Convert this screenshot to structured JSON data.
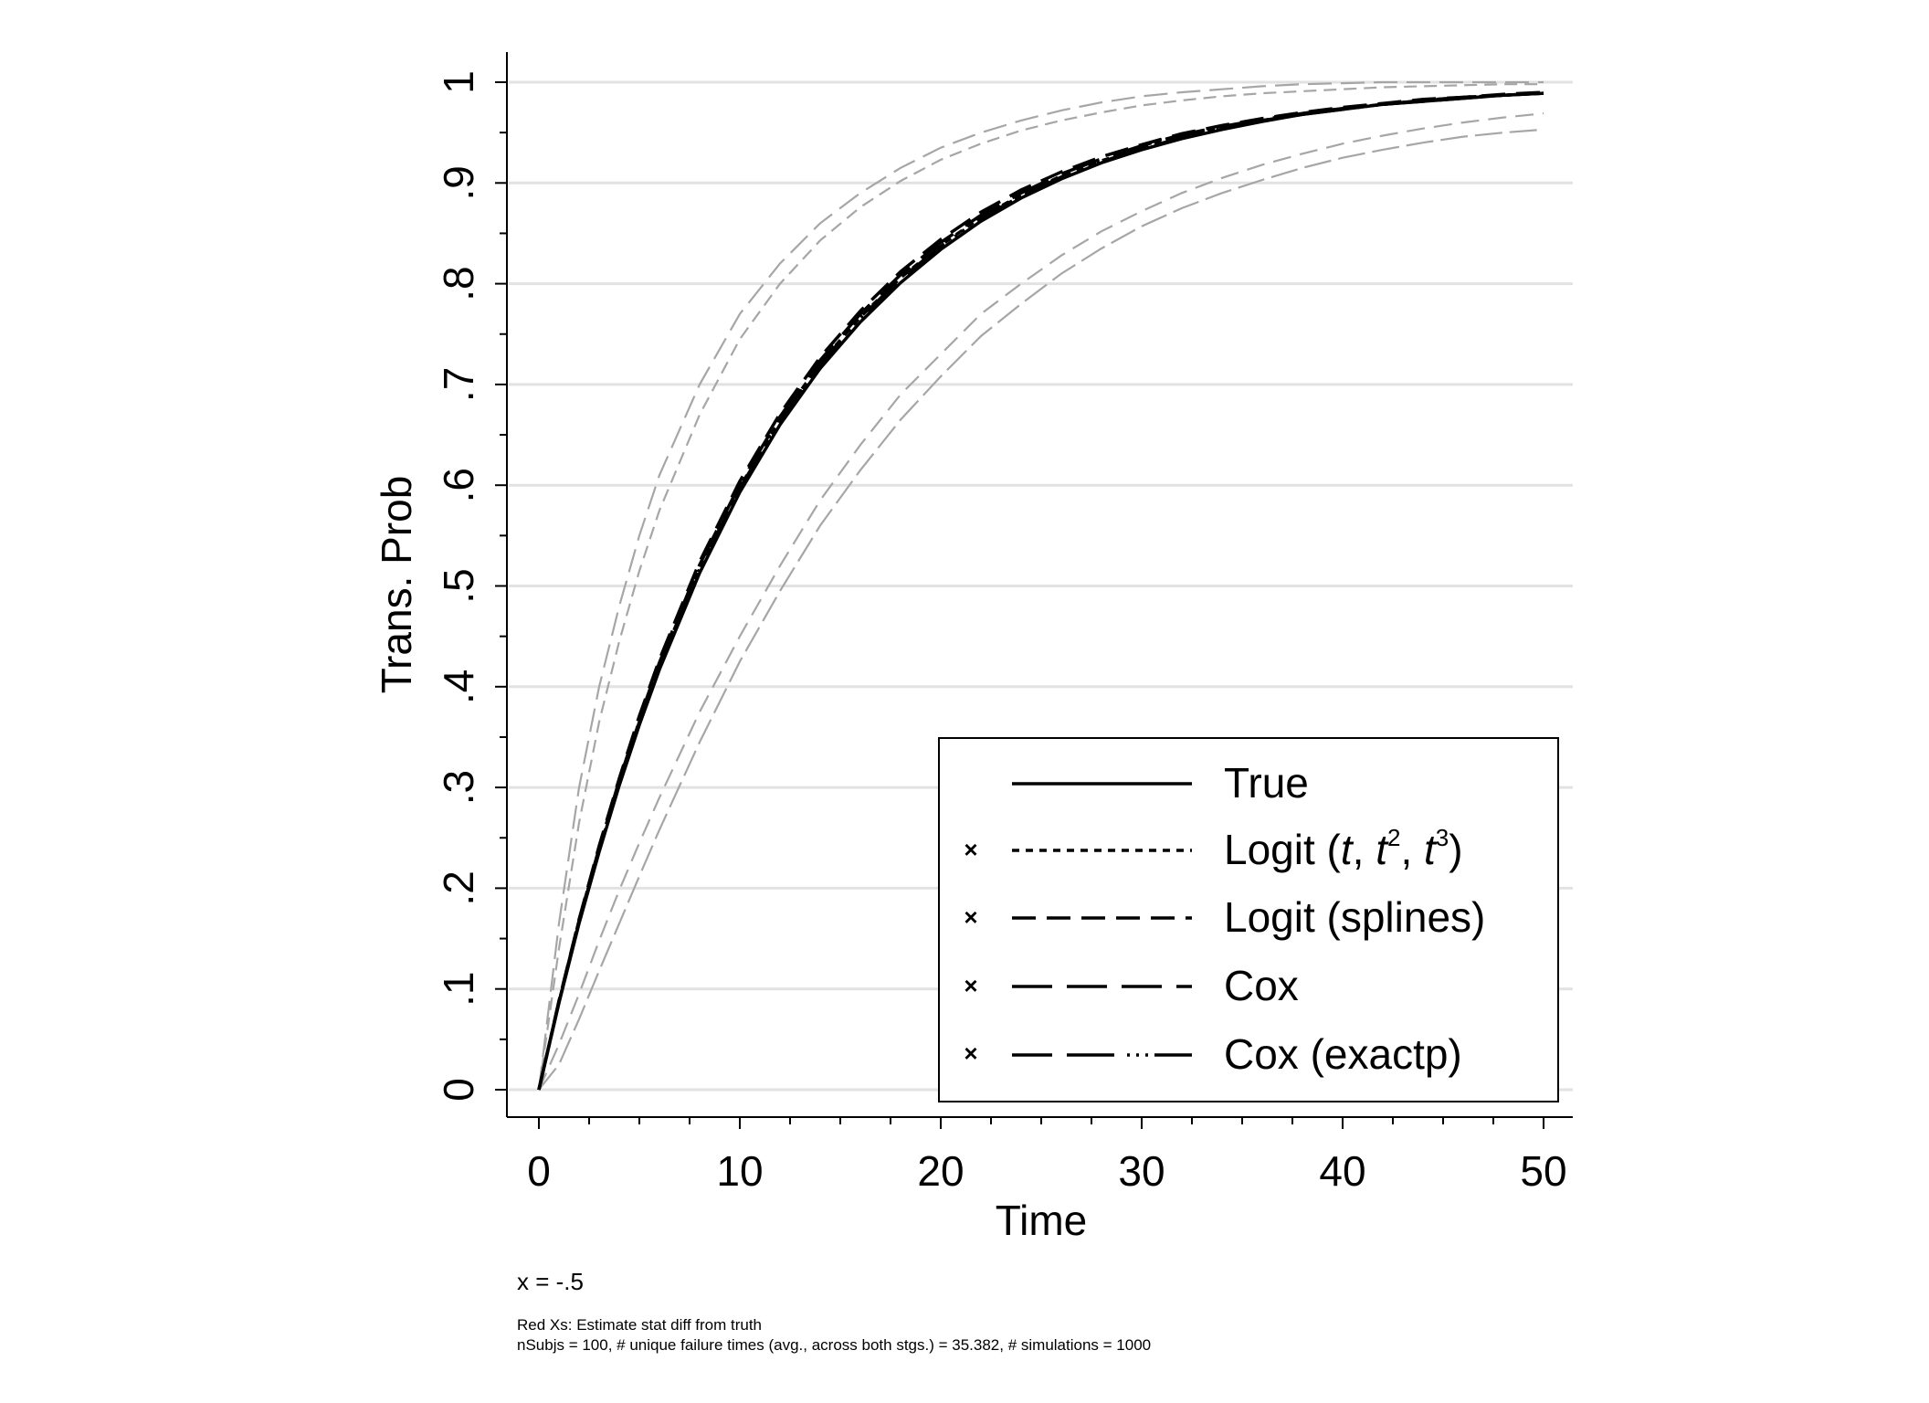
{
  "chart_data": {
    "type": "line",
    "xlabel": "Time",
    "ylabel": "Trans. Prob",
    "xlim": [
      0,
      50
    ],
    "ylim": [
      0,
      1
    ],
    "x_ticks": [
      "0",
      "10",
      "20",
      "30",
      "40",
      "50"
    ],
    "x_tick_values": [
      0,
      10,
      20,
      30,
      40,
      50
    ],
    "y_ticks": [
      "0",
      ".1",
      ".2",
      ".3",
      ".4",
      ".5",
      ".6",
      ".7",
      ".8",
      ".9",
      "1"
    ],
    "y_tick_values": [
      0,
      0.1,
      0.2,
      0.3,
      0.4,
      0.5,
      0.6,
      0.7,
      0.8,
      0.9,
      1
    ],
    "grid": "horizontal",
    "x": [
      0,
      1,
      2,
      3,
      4,
      5,
      6,
      8,
      10,
      12,
      14,
      16,
      18,
      20,
      22,
      24,
      26,
      28,
      30,
      32,
      34,
      36,
      38,
      40,
      42,
      44,
      46,
      48,
      50
    ],
    "series": [
      {
        "name": "True",
        "values": [
          0,
          0.086,
          0.165,
          0.236,
          0.302,
          0.362,
          0.417,
          0.513,
          0.593,
          0.66,
          0.716,
          0.762,
          0.801,
          0.834,
          0.862,
          0.885,
          0.904,
          0.92,
          0.933,
          0.944,
          0.953,
          0.961,
          0.968,
          0.973,
          0.978,
          0.981,
          0.984,
          0.987,
          0.989
        ]
      },
      {
        "name": "Logit (t, t2, t3)",
        "values": [
          0,
          0.087,
          0.167,
          0.239,
          0.305,
          0.366,
          0.421,
          0.518,
          0.598,
          0.665,
          0.721,
          0.767,
          0.806,
          0.838,
          0.866,
          0.888,
          0.907,
          0.922,
          0.935,
          0.946,
          0.955,
          0.962,
          0.969,
          0.974,
          0.978,
          0.982,
          0.985,
          0.987,
          0.989
        ]
      },
      {
        "name": "Logit (splines)",
        "values": [
          0,
          0.088,
          0.169,
          0.242,
          0.309,
          0.371,
          0.427,
          0.524,
          0.604,
          0.671,
          0.727,
          0.773,
          0.812,
          0.844,
          0.871,
          0.893,
          0.911,
          0.926,
          0.938,
          0.949,
          0.957,
          0.964,
          0.97,
          0.975,
          0.979,
          0.983,
          0.985,
          0.988,
          0.99
        ]
      },
      {
        "name": "Cox",
        "values": [
          0,
          0.088,
          0.168,
          0.24,
          0.307,
          0.368,
          0.424,
          0.521,
          0.601,
          0.668,
          0.724,
          0.77,
          0.809,
          0.841,
          0.868,
          0.89,
          0.909,
          0.924,
          0.937,
          0.948,
          0.956,
          0.963,
          0.969,
          0.974,
          0.978,
          0.982,
          0.985,
          0.987,
          0.989
        ]
      },
      {
        "name": "Cox (exactp)",
        "values": [
          0,
          0.087,
          0.166,
          0.238,
          0.304,
          0.365,
          0.42,
          0.517,
          0.597,
          0.664,
          0.72,
          0.766,
          0.805,
          0.837,
          0.865,
          0.887,
          0.906,
          0.921,
          0.934,
          0.945,
          0.954,
          0.962,
          0.968,
          0.973,
          0.978,
          0.981,
          0.984,
          0.987,
          0.989
        ]
      }
    ],
    "ci_bands": [
      {
        "name": "upper band",
        "values": [
          0,
          0.165,
          0.3,
          0.4,
          0.48,
          0.55,
          0.61,
          0.7,
          0.77,
          0.82,
          0.86,
          0.89,
          0.915,
          0.935,
          0.95,
          0.962,
          0.972,
          0.98,
          0.986,
          0.99,
          0.993,
          0.996,
          0.998,
          0.999,
          1.0,
          1.0,
          1.0,
          1.0,
          1.0
        ]
      },
      {
        "name": "upper band 2",
        "values": [
          0,
          0.14,
          0.265,
          0.365,
          0.445,
          0.515,
          0.575,
          0.67,
          0.745,
          0.8,
          0.843,
          0.876,
          0.902,
          0.923,
          0.939,
          0.952,
          0.962,
          0.97,
          0.977,
          0.982,
          0.986,
          0.989,
          0.991,
          0.993,
          0.995,
          0.996,
          0.997,
          0.998,
          0.998
        ]
      },
      {
        "name": "lower band 2",
        "values": [
          0,
          0.045,
          0.095,
          0.148,
          0.198,
          0.245,
          0.29,
          0.375,
          0.45,
          0.52,
          0.585,
          0.64,
          0.69,
          0.73,
          0.77,
          0.8,
          0.828,
          0.852,
          0.872,
          0.89,
          0.905,
          0.918,
          0.929,
          0.939,
          0.947,
          0.954,
          0.96,
          0.965,
          0.969
        ]
      },
      {
        "name": "lower band",
        "values": [
          0,
          0.025,
          0.07,
          0.118,
          0.165,
          0.212,
          0.258,
          0.345,
          0.425,
          0.495,
          0.56,
          0.615,
          0.665,
          0.708,
          0.748,
          0.78,
          0.81,
          0.835,
          0.857,
          0.875,
          0.89,
          0.903,
          0.915,
          0.925,
          0.933,
          0.94,
          0.946,
          0.95,
          0.953
        ]
      }
    ],
    "legend": {
      "position": "bottom-right",
      "entries": [
        {
          "label": "True",
          "style": "solid",
          "marker_color": ""
        },
        {
          "label_prefix": "Logit (",
          "label_t1": "t",
          "label_sep1": ", ",
          "label_t2": "t",
          "label_sup2": "2",
          "label_sep2": ", ",
          "label_t3": "t",
          "label_sup3": "3",
          "label_suffix": ")",
          "style": "short-dash",
          "marker_color": "#e8806e"
        },
        {
          "label": "Logit (splines)",
          "style": "dash",
          "marker_color": "#7a0a0a"
        },
        {
          "label": "Cox",
          "style": "long-dash",
          "marker_color": "#ff1a1a"
        },
        {
          "label": "Cox (exactp)",
          "style": "long-dash-dot",
          "marker_color": "#c4114a"
        }
      ]
    },
    "note": "x = -.5",
    "footnote_line1": "Red Xs: Estimate stat diff from truth",
    "footnote_line2": "nSubjs = 100, # unique failure times (avg., across both stgs.) = 35.382, # simulations = 1000"
  }
}
